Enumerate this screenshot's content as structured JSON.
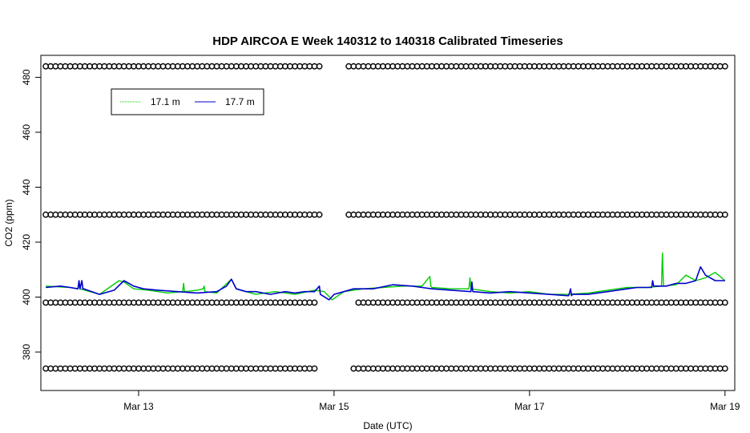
{
  "chart_data": {
    "type": "line",
    "title": "HDP AIRCOA E  Week 140312 to 140318  Calibrated Timeseries",
    "xlabel": "Date (UTC)",
    "ylabel": "CO2 (ppm)",
    "xlim": [
      12.0,
      19.1
    ],
    "ylim": [
      366,
      488
    ],
    "x_ticks": [
      {
        "value": 13,
        "label": "Mar 13"
      },
      {
        "value": 15,
        "label": "Mar 15"
      },
      {
        "value": 17,
        "label": "Mar 17"
      },
      {
        "value": 19,
        "label": "Mar 19"
      }
    ],
    "y_ticks": [
      380,
      400,
      420,
      440,
      460,
      480
    ],
    "grid": false,
    "legend_position": "top-left",
    "series": [
      {
        "name": "17.1 m",
        "color": "#00cc00",
        "x": [
          12.05,
          12.3,
          12.38,
          12.39,
          12.4,
          12.6,
          12.8,
          12.85,
          12.95,
          13.1,
          13.3,
          13.45,
          13.46,
          13.47,
          13.6,
          13.66,
          13.67,
          13.68,
          13.8,
          13.95,
          14.0,
          14.1,
          14.2,
          14.4,
          14.6,
          14.8,
          14.9,
          14.98,
          15.1,
          15.3,
          15.5,
          15.7,
          15.9,
          15.98,
          15.99,
          16.0,
          16.2,
          16.38,
          16.39,
          16.4,
          16.6,
          16.8,
          17.0,
          17.2,
          17.4,
          17.6,
          17.8,
          18.0,
          18.2,
          18.35,
          18.36,
          18.37,
          18.5,
          18.6,
          18.7,
          18.8,
          18.9,
          19.0
        ],
        "y": [
          404,
          403.5,
          403,
          405.5,
          403,
          401,
          406,
          405.5,
          403,
          402.5,
          401.5,
          402,
          405,
          402,
          402.5,
          403,
          404,
          402,
          401.5,
          406.5,
          403,
          402,
          401,
          402,
          401,
          402.5,
          402,
          399,
          402,
          403,
          403.5,
          404,
          404,
          407.5,
          404,
          403.5,
          403,
          403,
          407,
          403,
          402,
          401.5,
          402,
          401,
          401,
          401.5,
          402.5,
          403.5,
          403.5,
          404,
          416,
          404,
          404.5,
          408,
          406,
          407,
          409,
          406
        ]
      },
      {
        "name": "17.7 m",
        "color": "#0000cc",
        "x": [
          12.05,
          12.2,
          12.3,
          12.38,
          12.39,
          12.4,
          12.42,
          12.43,
          12.44,
          12.6,
          12.75,
          12.85,
          12.95,
          13.05,
          13.2,
          13.4,
          13.6,
          13.8,
          13.9,
          13.95,
          14.0,
          14.1,
          14.2,
          14.35,
          14.5,
          14.6,
          14.7,
          14.8,
          14.85,
          14.86,
          14.95,
          15.0,
          15.1,
          15.2,
          15.4,
          15.6,
          15.8,
          15.9,
          16.0,
          16.2,
          16.4,
          16.41,
          16.42,
          16.6,
          16.8,
          17.0,
          17.2,
          17.4,
          17.42,
          17.43,
          17.44,
          17.6,
          17.8,
          18.0,
          18.1,
          18.2,
          18.25,
          18.26,
          18.27,
          18.4,
          18.5,
          18.6,
          18.7,
          18.75,
          18.8,
          18.9,
          19.0
        ],
        "y": [
          403.5,
          404,
          403.5,
          403,
          406,
          403,
          406,
          403,
          403,
          401,
          402.5,
          406,
          404,
          403,
          402.5,
          402,
          401.5,
          402,
          404,
          406.5,
          403,
          402,
          402,
          401,
          402,
          401.5,
          402,
          402,
          404,
          401,
          399,
          401,
          402,
          403,
          403,
          404.5,
          404,
          403.5,
          403,
          402.5,
          402,
          405.5,
          402,
          401.5,
          402,
          401.5,
          401,
          400.5,
          403,
          400.5,
          401,
          401,
          402,
          403,
          403.5,
          403.5,
          403.5,
          406,
          404,
          404,
          405,
          405,
          406,
          411,
          408,
          406,
          406
        ]
      }
    ],
    "marker_rows": [
      {
        "y": 484,
        "x": [
          12.05,
          12.1,
          12.15,
          12.2,
          12.25,
          12.3,
          12.35,
          12.4,
          12.45,
          12.5,
          12.55,
          12.6,
          12.65,
          12.7,
          12.75,
          12.8,
          12.85,
          12.9,
          12.95,
          13.0,
          13.05,
          13.1,
          13.15,
          13.2,
          13.25,
          13.3,
          13.35,
          13.4,
          13.45,
          13.5,
          13.55,
          13.6,
          13.65,
          13.7,
          13.75,
          13.8,
          13.85,
          13.9,
          13.95,
          14.0,
          14.05,
          14.1,
          14.15,
          14.2,
          14.25,
          14.3,
          14.35,
          14.4,
          14.45,
          14.5,
          14.55,
          14.6,
          14.65,
          14.7,
          14.75,
          14.8,
          14.85,
          15.15,
          15.2,
          15.25,
          15.3,
          15.35,
          15.4,
          15.45,
          15.5,
          15.55,
          15.6,
          15.65,
          15.7,
          15.75,
          15.8,
          15.85,
          15.9,
          15.95,
          16.0,
          16.05,
          16.1,
          16.15,
          16.2,
          16.25,
          16.3,
          16.35,
          16.4,
          16.45,
          16.5,
          16.55,
          16.6,
          16.65,
          16.7,
          16.75,
          16.8,
          16.85,
          16.9,
          16.95,
          17.0,
          17.05,
          17.1,
          17.15,
          17.2,
          17.25,
          17.3,
          17.35,
          17.4,
          17.45,
          17.5,
          17.55,
          17.6,
          17.65,
          17.7,
          17.75,
          17.8,
          17.85,
          17.9,
          17.95,
          18.0,
          18.05,
          18.1,
          18.15,
          18.2,
          18.25,
          18.3,
          18.35,
          18.4,
          18.45,
          18.5,
          18.55,
          18.6,
          18.65,
          18.7,
          18.75,
          18.8,
          18.85,
          18.9,
          18.95,
          19.0
        ]
      },
      {
        "y": 430,
        "x": [
          12.05,
          12.1,
          12.15,
          12.2,
          12.25,
          12.3,
          12.35,
          12.4,
          12.45,
          12.5,
          12.55,
          12.6,
          12.65,
          12.7,
          12.75,
          12.8,
          12.85,
          12.9,
          12.95,
          13.0,
          13.05,
          13.1,
          13.15,
          13.2,
          13.25,
          13.3,
          13.35,
          13.4,
          13.45,
          13.5,
          13.55,
          13.6,
          13.65,
          13.7,
          13.75,
          13.8,
          13.85,
          13.9,
          13.95,
          14.0,
          14.05,
          14.1,
          14.15,
          14.2,
          14.25,
          14.3,
          14.35,
          14.4,
          14.45,
          14.5,
          14.55,
          14.6,
          14.65,
          14.7,
          14.75,
          14.8,
          14.85,
          15.15,
          15.2,
          15.25,
          15.3,
          15.35,
          15.4,
          15.45,
          15.5,
          15.55,
          15.6,
          15.65,
          15.7,
          15.75,
          15.8,
          15.85,
          15.9,
          15.95,
          16.0,
          16.05,
          16.1,
          16.15,
          16.2,
          16.25,
          16.3,
          16.35,
          16.4,
          16.45,
          16.5,
          16.55,
          16.6,
          16.65,
          16.7,
          16.75,
          16.8,
          16.85,
          16.9,
          16.95,
          17.0,
          17.05,
          17.1,
          17.15,
          17.2,
          17.25,
          17.3,
          17.35,
          17.4,
          17.45,
          17.5,
          17.55,
          17.6,
          17.65,
          17.7,
          17.75,
          17.8,
          17.85,
          17.9,
          17.95,
          18.0,
          18.05,
          18.1,
          18.15,
          18.2,
          18.25,
          18.3,
          18.35,
          18.4,
          18.45,
          18.5,
          18.55,
          18.6,
          18.65,
          18.7,
          18.75,
          18.8,
          18.85,
          18.9,
          18.95,
          19.0
        ]
      },
      {
        "y": 398,
        "x": [
          12.05,
          12.1,
          12.15,
          12.2,
          12.25,
          12.3,
          12.35,
          12.4,
          12.45,
          12.5,
          12.55,
          12.6,
          12.65,
          12.7,
          12.75,
          12.8,
          12.85,
          12.9,
          12.95,
          13.0,
          13.05,
          13.1,
          13.15,
          13.2,
          13.25,
          13.3,
          13.35,
          13.4,
          13.45,
          13.5,
          13.55,
          13.6,
          13.65,
          13.7,
          13.75,
          13.8,
          13.85,
          13.9,
          13.95,
          14.0,
          14.05,
          14.1,
          14.15,
          14.2,
          14.25,
          14.3,
          14.35,
          14.4,
          14.45,
          14.5,
          14.55,
          14.6,
          14.65,
          14.7,
          14.75,
          14.8,
          15.25,
          15.3,
          15.35,
          15.4,
          15.45,
          15.5,
          15.55,
          15.6,
          15.65,
          15.7,
          15.75,
          15.8,
          15.85,
          15.9,
          15.95,
          16.0,
          16.05,
          16.1,
          16.15,
          16.2,
          16.25,
          16.3,
          16.35,
          16.4,
          16.45,
          16.5,
          16.55,
          16.6,
          16.65,
          16.7,
          16.75,
          16.8,
          16.85,
          16.9,
          16.95,
          17.0,
          17.05,
          17.1,
          17.15,
          17.2,
          17.25,
          17.3,
          17.35,
          17.4,
          17.45,
          17.5,
          17.55,
          17.6,
          17.65,
          17.7,
          17.75,
          17.8,
          17.85,
          17.9,
          17.95,
          18.0,
          18.05,
          18.1,
          18.15,
          18.2,
          18.25,
          18.3,
          18.35,
          18.4,
          18.45,
          18.5,
          18.55,
          18.6,
          18.65,
          18.7,
          18.75,
          18.8,
          18.85,
          18.9,
          18.95,
          19.0
        ]
      },
      {
        "y": 374,
        "x": [
          12.05,
          12.1,
          12.15,
          12.2,
          12.25,
          12.3,
          12.35,
          12.4,
          12.45,
          12.5,
          12.55,
          12.6,
          12.65,
          12.7,
          12.75,
          12.8,
          12.85,
          12.9,
          12.95,
          13.0,
          13.05,
          13.1,
          13.15,
          13.2,
          13.25,
          13.3,
          13.35,
          13.4,
          13.45,
          13.5,
          13.55,
          13.6,
          13.65,
          13.7,
          13.75,
          13.8,
          13.85,
          13.9,
          13.95,
          14.0,
          14.05,
          14.1,
          14.15,
          14.2,
          14.25,
          14.3,
          14.35,
          14.4,
          14.45,
          14.5,
          14.55,
          14.6,
          14.65,
          14.7,
          14.75,
          14.8,
          15.2,
          15.25,
          15.3,
          15.35,
          15.4,
          15.45,
          15.5,
          15.55,
          15.6,
          15.65,
          15.7,
          15.75,
          15.8,
          15.85,
          15.9,
          15.95,
          16.0,
          16.05,
          16.1,
          16.15,
          16.2,
          16.25,
          16.3,
          16.35,
          16.4,
          16.45,
          16.5,
          16.55,
          16.6,
          16.65,
          16.7,
          16.75,
          16.8,
          16.85,
          16.9,
          16.95,
          17.0,
          17.05,
          17.1,
          17.15,
          17.2,
          17.25,
          17.3,
          17.35,
          17.4,
          17.45,
          17.5,
          17.55,
          17.6,
          17.65,
          17.7,
          17.75,
          17.8,
          17.85,
          17.9,
          17.95,
          18.0,
          18.05,
          18.1,
          18.15,
          18.2,
          18.25,
          18.3,
          18.35,
          18.4,
          18.45,
          18.5,
          18.55,
          18.6,
          18.65,
          18.7,
          18.75,
          18.8,
          18.85,
          18.9,
          18.95,
          19.0
        ]
      }
    ]
  }
}
